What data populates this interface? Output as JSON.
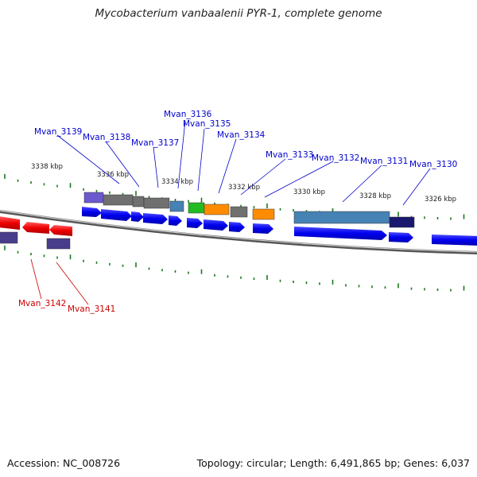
{
  "title": "Mycobacterium vanbaalenii PYR-1, complete genome",
  "footer": {
    "accession": "Accession: NC_008726",
    "topology": "Topology: circular; Length: 6,491,865 bp; Genes: 6,037"
  },
  "colors": {
    "forward_label": "#0000cc",
    "reverse_label": "#cc0000",
    "tick": "#1a7a1a",
    "backbone": "#808080"
  },
  "scale_labels": [
    "3338 kbp",
    "3336 kbp",
    "3334 kbp",
    "3332 kbp",
    "3330 kbp",
    "3328 kbp",
    "3326 kbp"
  ],
  "gene_labels": [
    {
      "text": "Mvan_3139",
      "strand": "forward"
    },
    {
      "text": "Mvan_3138",
      "strand": "forward"
    },
    {
      "text": "Mvan_3137",
      "strand": "forward"
    },
    {
      "text": "Mvan_3136",
      "strand": "forward"
    },
    {
      "text": "Mvan_3135",
      "strand": "forward"
    },
    {
      "text": "Mvan_3134",
      "strand": "forward"
    },
    {
      "text": "Mvan_3133",
      "strand": "forward"
    },
    {
      "text": "Mvan_3132",
      "strand": "forward"
    },
    {
      "text": "Mvan_3131",
      "strand": "forward"
    },
    {
      "text": "Mvan_3130",
      "strand": "forward"
    },
    {
      "text": "Mvan_3142",
      "strand": "reverse"
    },
    {
      "text": "Mvan_3141",
      "strand": "reverse"
    }
  ]
}
